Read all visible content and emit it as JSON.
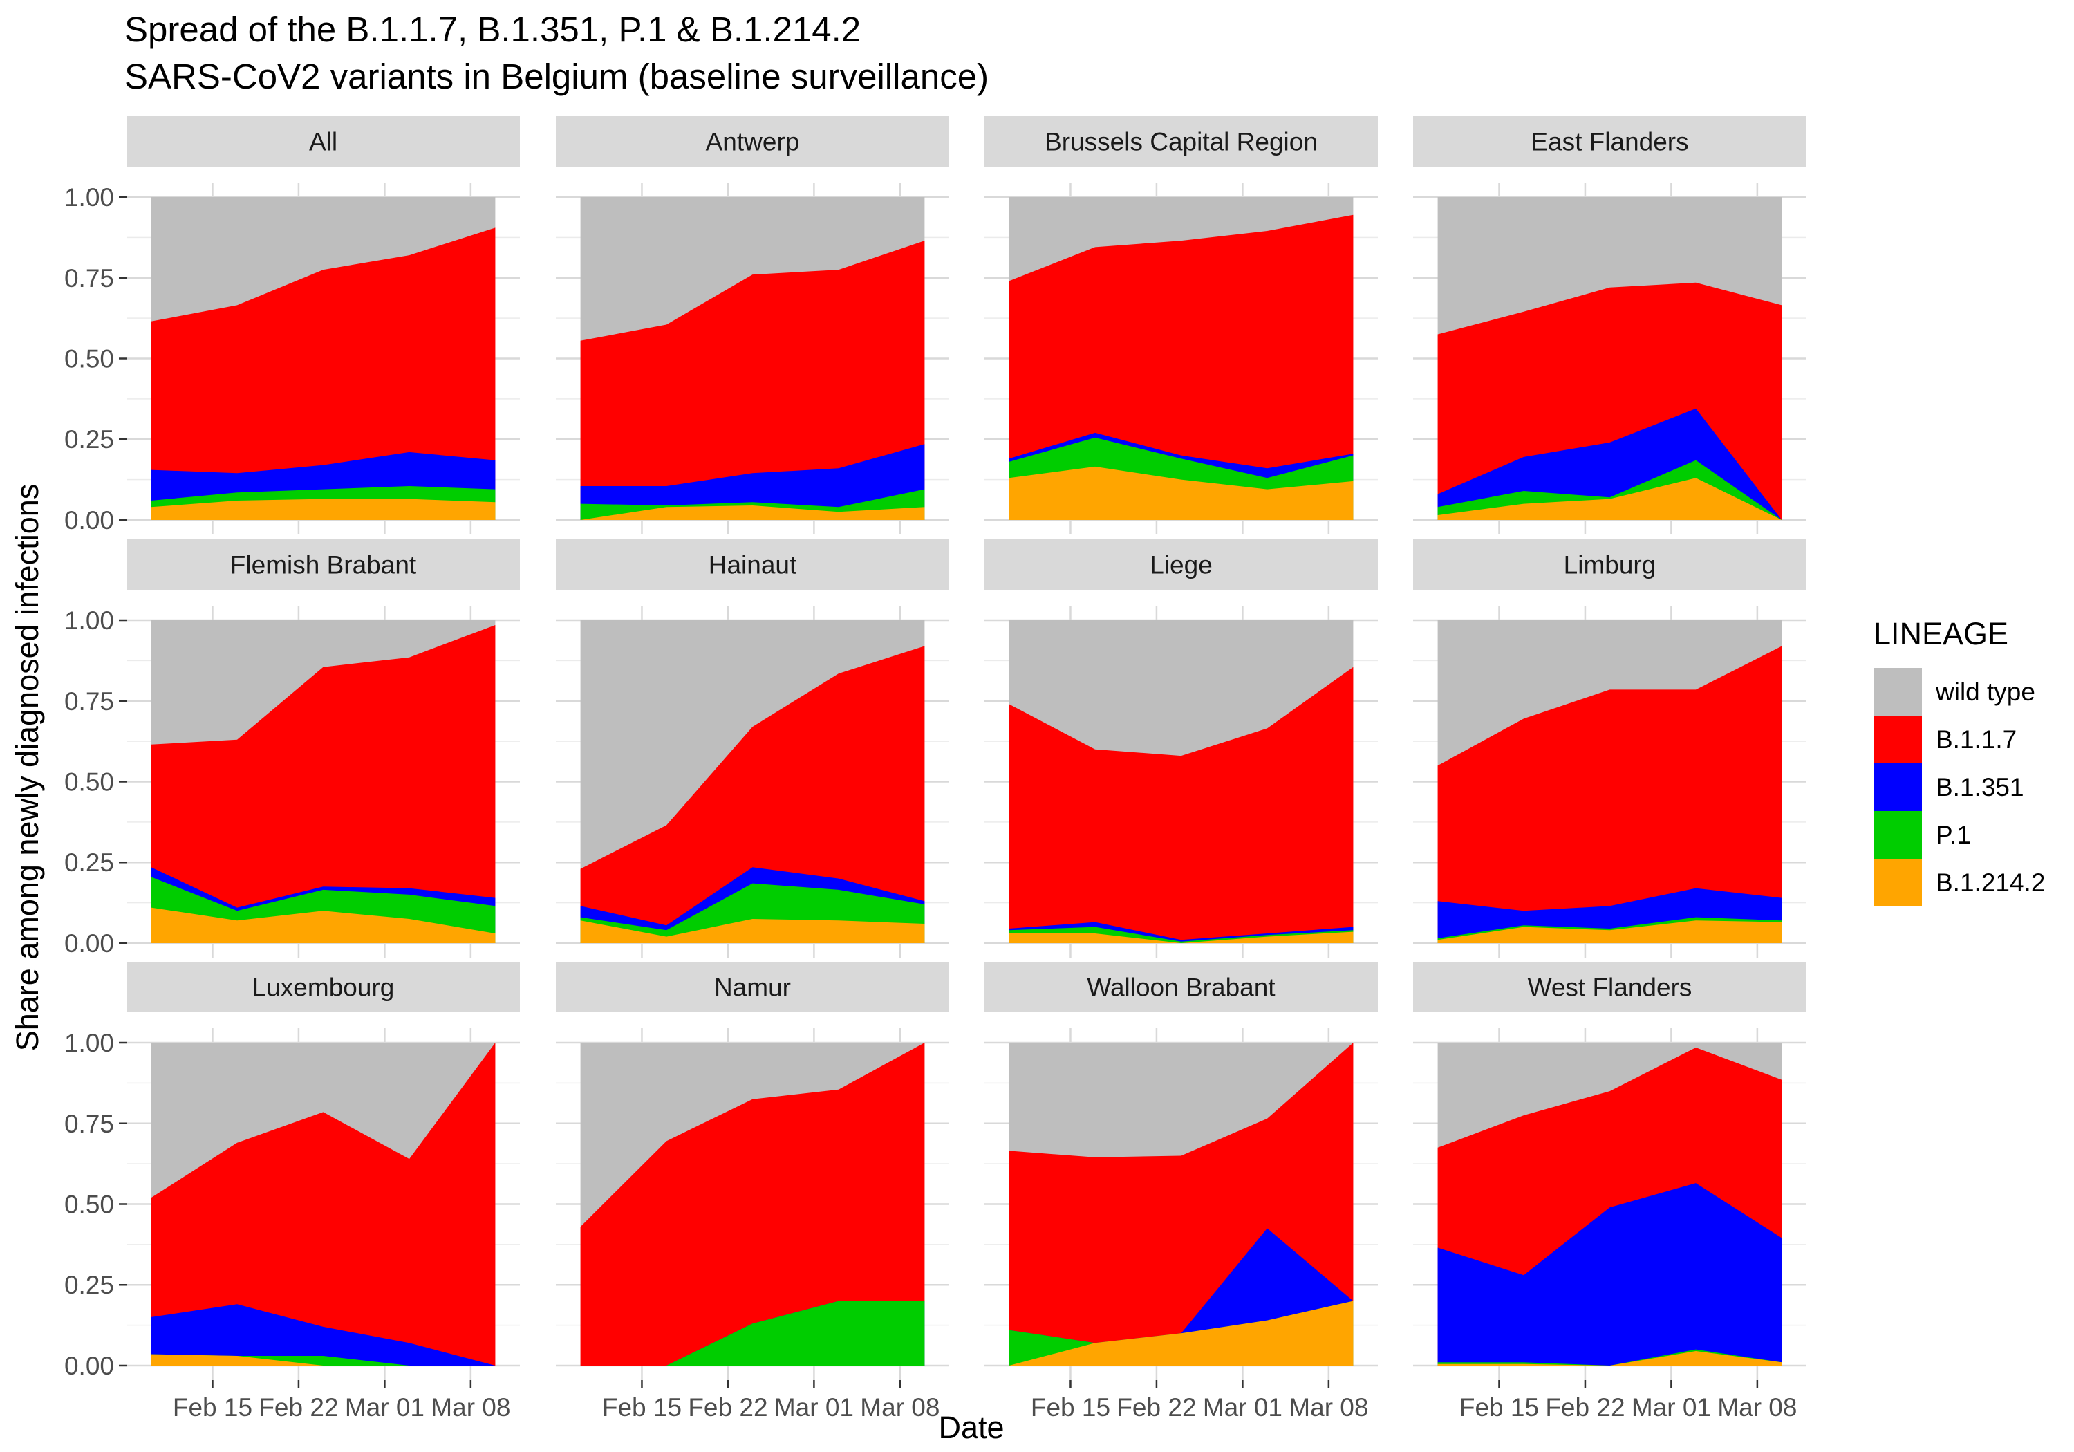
{
  "chart_data": {
    "type": "area",
    "title_lines": [
      "Spread of the B.1.1.7, B.1.351, P.1 & B.1.214.2",
      "SARS-CoV2 variants in Belgium (baseline surveillance)"
    ],
    "xlabel": "Date",
    "ylabel": "Share among newly diagnosed infections",
    "ylim": [
      0,
      1
    ],
    "yticks": [
      "0.00",
      "0.25",
      "0.50",
      "0.75",
      "1.00"
    ],
    "x": [
      "2021-02-10",
      "2021-02-17",
      "2021-02-24",
      "2021-03-03",
      "2021-03-10"
    ],
    "xticks": [
      {
        "date": "2021-02-15",
        "label": "Feb 15"
      },
      {
        "date": "2021-02-22",
        "label": "Feb 22"
      },
      {
        "date": "2021-03-01",
        "label": "Mar 01"
      },
      {
        "date": "2021-03-08",
        "label": "Mar 08"
      }
    ],
    "xrange": [
      "2021-02-08",
      "2021-03-12"
    ],
    "stacking": "cumulative top-edge values per series, bottom to top: B.1.214.2, P.1, B.1.351, B.1.1.7, wild type",
    "legend": {
      "title": "LINEAGE",
      "placement": "right",
      "entries": [
        {
          "name": "wild type",
          "color": "#BEBEBE"
        },
        {
          "name": "B.1.1.7",
          "color": "#FF0000"
        },
        {
          "name": "B.1.351",
          "color": "#0000FF"
        },
        {
          "name": "P.1",
          "color": "#00CD00"
        },
        {
          "name": "B.1.214.2",
          "color": "#FFA500"
        }
      ]
    },
    "panels": [
      {
        "name": "All",
        "series": {
          "B.1.214.2": [
            0.04,
            0.06,
            0.065,
            0.065,
            0.055
          ],
          "P.1": [
            0.06,
            0.085,
            0.095,
            0.105,
            0.095
          ],
          "B.1.351": [
            0.155,
            0.145,
            0.17,
            0.21,
            0.185
          ],
          "B.1.1.7": [
            0.615,
            0.665,
            0.775,
            0.82,
            0.905
          ],
          "wild type": [
            1,
            1,
            1,
            1,
            1
          ]
        }
      },
      {
        "name": "Antwerp",
        "series": {
          "B.1.214.2": [
            0.0,
            0.04,
            0.045,
            0.025,
            0.04
          ],
          "P.1": [
            0.05,
            0.045,
            0.055,
            0.04,
            0.095
          ],
          "B.1.351": [
            0.105,
            0.105,
            0.145,
            0.16,
            0.235
          ],
          "B.1.1.7": [
            0.555,
            0.605,
            0.76,
            0.775,
            0.865
          ],
          "wild type": [
            1,
            1,
            1,
            1,
            1
          ]
        }
      },
      {
        "name": "Brussels Capital Region",
        "series": {
          "B.1.214.2": [
            0.13,
            0.165,
            0.125,
            0.095,
            0.12
          ],
          "P.1": [
            0.18,
            0.255,
            0.19,
            0.13,
            0.2
          ],
          "B.1.351": [
            0.19,
            0.27,
            0.2,
            0.16,
            0.205
          ],
          "B.1.1.7": [
            0.74,
            0.845,
            0.865,
            0.895,
            0.945
          ],
          "wild type": [
            1,
            1,
            1,
            1,
            1
          ]
        }
      },
      {
        "name": "East Flanders",
        "series": {
          "B.1.214.2": [
            0.015,
            0.05,
            0.065,
            0.13,
            0.0
          ],
          "P.1": [
            0.04,
            0.09,
            0.07,
            0.185,
            0.0
          ],
          "B.1.351": [
            0.08,
            0.195,
            0.24,
            0.345,
            0.0
          ],
          "B.1.1.7": [
            0.575,
            0.645,
            0.72,
            0.735,
            0.665
          ],
          "wild type": [
            1,
            1,
            1,
            1,
            1
          ]
        }
      },
      {
        "name": "Flemish Brabant",
        "series": {
          "B.1.214.2": [
            0.11,
            0.07,
            0.1,
            0.075,
            0.03
          ],
          "P.1": [
            0.205,
            0.1,
            0.165,
            0.15,
            0.115
          ],
          "B.1.351": [
            0.235,
            0.11,
            0.175,
            0.17,
            0.14
          ],
          "B.1.1.7": [
            0.615,
            0.63,
            0.855,
            0.885,
            0.985
          ],
          "wild type": [
            1,
            1,
            1,
            1,
            1
          ]
        }
      },
      {
        "name": "Hainaut",
        "series": {
          "B.1.214.2": [
            0.07,
            0.02,
            0.075,
            0.07,
            0.06
          ],
          "P.1": [
            0.08,
            0.04,
            0.185,
            0.165,
            0.12
          ],
          "B.1.351": [
            0.115,
            0.055,
            0.235,
            0.2,
            0.13
          ],
          "B.1.1.7": [
            0.23,
            0.365,
            0.67,
            0.835,
            0.92
          ],
          "wild type": [
            1,
            1,
            1,
            1,
            1
          ]
        }
      },
      {
        "name": "Liege",
        "series": {
          "B.1.214.2": [
            0.03,
            0.03,
            0.0,
            0.02,
            0.035
          ],
          "P.1": [
            0.04,
            0.05,
            0.005,
            0.025,
            0.04
          ],
          "B.1.351": [
            0.045,
            0.065,
            0.01,
            0.03,
            0.05
          ],
          "B.1.1.7": [
            0.74,
            0.6,
            0.58,
            0.665,
            0.855
          ],
          "wild type": [
            1,
            1,
            1,
            1,
            1
          ]
        }
      },
      {
        "name": "Limburg",
        "series": {
          "B.1.214.2": [
            0.01,
            0.05,
            0.04,
            0.07,
            0.065
          ],
          "P.1": [
            0.015,
            0.055,
            0.045,
            0.08,
            0.07
          ],
          "B.1.351": [
            0.13,
            0.1,
            0.115,
            0.17,
            0.14
          ],
          "B.1.1.7": [
            0.55,
            0.695,
            0.785,
            0.785,
            0.92
          ],
          "wild type": [
            1,
            1,
            1,
            1,
            1
          ]
        }
      },
      {
        "name": "Luxembourg",
        "series": {
          "B.1.214.2": [
            0.035,
            0.03,
            0.0,
            0.0,
            0.0
          ],
          "P.1": [
            0.035,
            0.03,
            0.03,
            0.0,
            0.0
          ],
          "B.1.351": [
            0.15,
            0.19,
            0.12,
            0.07,
            0.0
          ],
          "B.1.1.7": [
            0.52,
            0.69,
            0.785,
            0.64,
            1.0
          ],
          "wild type": [
            1,
            1,
            1,
            1,
            1
          ]
        }
      },
      {
        "name": "Namur",
        "series": {
          "B.1.214.2": [
            0.0,
            0.0,
            0.0,
            0.0,
            0.0
          ],
          "P.1": [
            0.0,
            0.0,
            0.13,
            0.2,
            0.2
          ],
          "B.1.351": [
            0.0,
            0.0,
            0.13,
            0.2,
            0.2
          ],
          "B.1.1.7": [
            0.43,
            0.695,
            0.825,
            0.855,
            1.0
          ],
          "wild type": [
            1,
            1,
            1,
            1,
            1
          ]
        }
      },
      {
        "name": "Walloon Brabant",
        "series": {
          "B.1.214.2": [
            0.0,
            0.07,
            0.1,
            0.14,
            0.2
          ],
          "P.1": [
            0.11,
            0.07,
            0.1,
            0.14,
            0.2
          ],
          "B.1.351": [
            0.11,
            0.07,
            0.1,
            0.425,
            0.2
          ],
          "B.1.1.7": [
            0.665,
            0.645,
            0.65,
            0.765,
            1.0
          ],
          "wild type": [
            1,
            1,
            1,
            1,
            1
          ]
        }
      },
      {
        "name": "West Flanders",
        "series": {
          "B.1.214.2": [
            0.005,
            0.005,
            0.0,
            0.045,
            0.01
          ],
          "P.1": [
            0.01,
            0.01,
            0.0,
            0.05,
            0.01
          ],
          "B.1.351": [
            0.365,
            0.28,
            0.49,
            0.565,
            0.395
          ],
          "B.1.1.7": [
            0.675,
            0.775,
            0.85,
            0.985,
            0.885
          ],
          "wild type": [
            1,
            1,
            1,
            1,
            1
          ]
        }
      }
    ]
  }
}
